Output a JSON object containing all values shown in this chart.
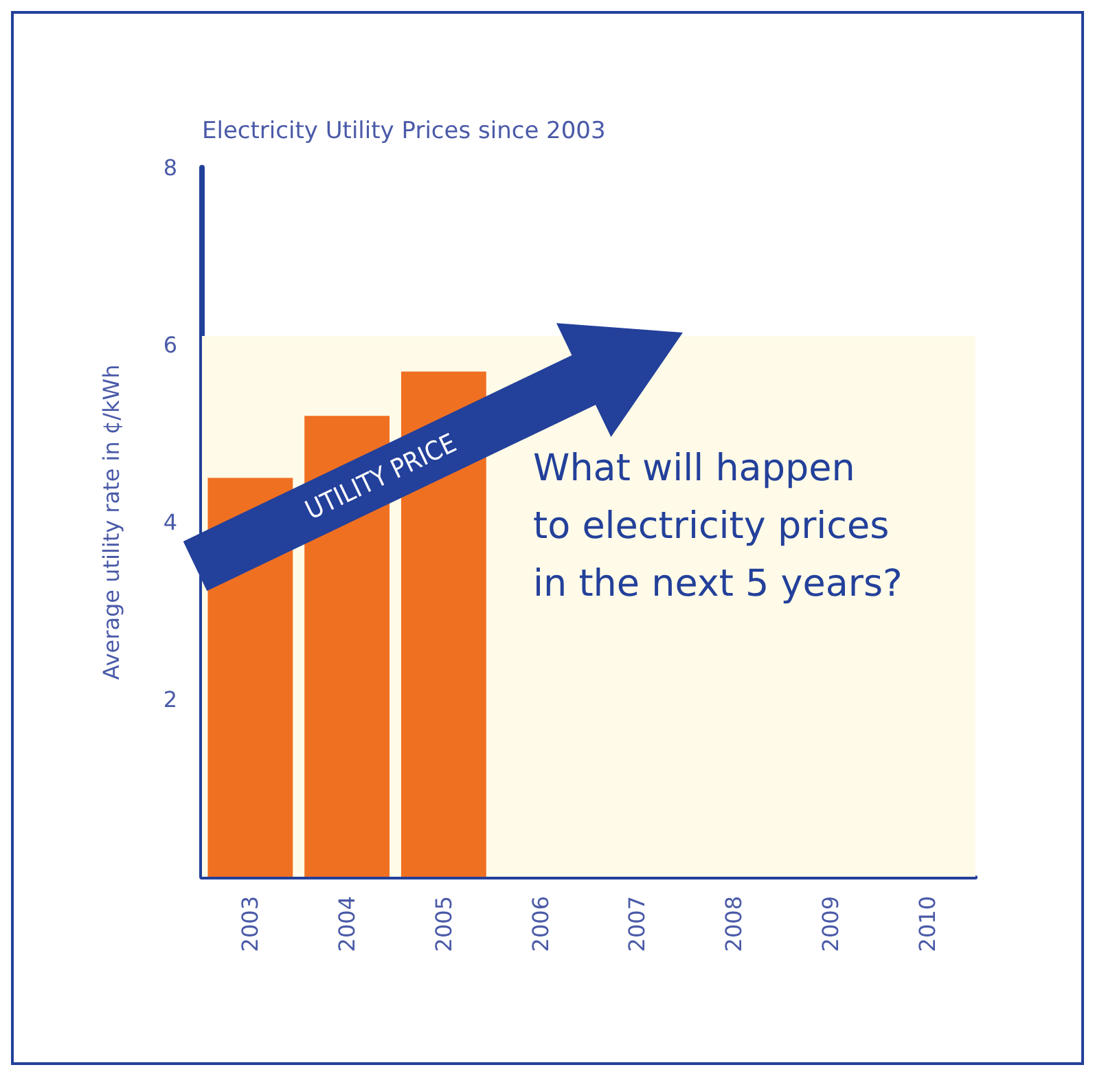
{
  "chart_data": {
    "type": "bar",
    "title": "Electricity Utility Prices since 2003",
    "ylabel": "Average utility rate in ¢/kWh",
    "categories": [
      "2003",
      "2004",
      "2005",
      "2006",
      "2007",
      "2008",
      "2009",
      "2010"
    ],
    "values": [
      4.5,
      5.2,
      5.7,
      null,
      null,
      null,
      null,
      null
    ],
    "color": "#f07022",
    "ylim": [
      0,
      8
    ],
    "yticks": [
      2,
      4,
      6,
      8
    ],
    "grid": false,
    "bands": [
      {
        "axis": "y",
        "from": 0,
        "to": 6.1,
        "color": "#fffbe8"
      }
    ],
    "annotations": [
      "UTILITY PRICE",
      "What will happen\nto electricity prices\nin the next 5 years?"
    ]
  }
}
